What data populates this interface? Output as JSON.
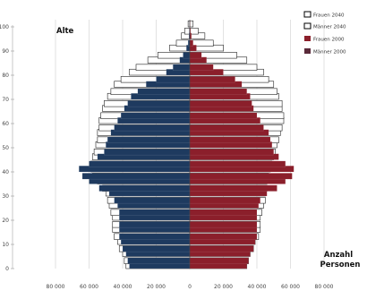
{
  "chart_data": {
    "type": "bar",
    "orientation": "horizontal",
    "subtype": "population-pyramid",
    "ylabel": "Alte",
    "xlabel_line1": "Anzahl",
    "xlabel_line2": "Personen",
    "x_ticks": [
      "80 000",
      "60 000",
      "40 000",
      "20 000",
      "0",
      "20 000",
      "40 000",
      "60 000",
      "80 000"
    ],
    "x_tick_values": [
      -80000,
      -60000,
      -40000,
      -20000,
      0,
      20000,
      40000,
      60000,
      80000
    ],
    "y_ticks": [
      "0",
      "10",
      "20",
      "30",
      "40",
      "50",
      "60",
      "70",
      "80",
      "90",
      "100"
    ],
    "y_tick_values": [
      0,
      10,
      20,
      30,
      40,
      50,
      60,
      70,
      80,
      90,
      100
    ],
    "xlim": [
      -80000,
      80000
    ],
    "ylim": [
      0,
      100
    ],
    "grid": "vertical",
    "legend_position": "top-right",
    "ages": [
      0,
      2,
      5,
      7,
      10,
      12,
      15,
      17,
      20,
      22,
      25,
      27,
      30,
      32,
      35,
      37,
      40,
      42,
      45,
      47,
      50,
      52,
      55,
      57,
      60,
      62,
      65,
      67,
      70,
      72,
      75,
      77,
      80,
      82,
      85,
      87,
      90,
      92,
      95,
      97,
      100
    ],
    "series": [
      {
        "name": "Frauen 2040",
        "color": "#ffffff",
        "side": "right",
        "values": [
          34000,
          35000,
          36000,
          38000,
          39000,
          41000,
          42000,
          42000,
          42000,
          43000,
          44000,
          45000,
          45000,
          46000,
          46000,
          47000,
          48000,
          49000,
          50000,
          51000,
          52000,
          53000,
          54000,
          55000,
          56000,
          56000,
          55000,
          55000,
          53000,
          52000,
          50000,
          47000,
          44000,
          40000,
          34000,
          28000,
          20000,
          14000,
          9000,
          5000,
          2000
        ]
      },
      {
        "name": "Männer 2040",
        "color": "#ffffff",
        "side": "left",
        "values": [
          38000,
          39000,
          40000,
          42000,
          43000,
          45000,
          46000,
          46000,
          46000,
          47000,
          48000,
          49000,
          50000,
          52000,
          55000,
          58000,
          59000,
          59000,
          58000,
          57000,
          56000,
          55000,
          55000,
          54000,
          54000,
          53000,
          52000,
          51000,
          49000,
          47000,
          45000,
          41000,
          36000,
          32000,
          25000,
          19000,
          12000,
          8000,
          5000,
          3000,
          1000
        ]
      },
      {
        "name": "Frauen 2000",
        "color": "#8b1f2b",
        "side": "right",
        "values": [
          34000,
          35000,
          36000,
          38000,
          39000,
          40000,
          40000,
          40000,
          40000,
          40000,
          41000,
          42000,
          46000,
          52000,
          57000,
          61000,
          62000,
          57000,
          53000,
          50000,
          49000,
          48000,
          47000,
          44000,
          42000,
          40000,
          38000,
          37000,
          36000,
          34000,
          31000,
          27000,
          20000,
          14000,
          10000,
          7000,
          4000,
          2000,
          1000,
          500,
          200
        ]
      },
      {
        "name": "Männer 2000",
        "color": "#1e3a5f",
        "side": "left",
        "values": [
          36000,
          37000,
          38000,
          40000,
          41000,
          42000,
          42000,
          42000,
          42000,
          42000,
          43000,
          45000,
          48000,
          54000,
          60000,
          64000,
          66000,
          60000,
          55000,
          51000,
          50000,
          49000,
          47000,
          45000,
          43000,
          41000,
          39000,
          37000,
          35000,
          31000,
          26000,
          20000,
          14000,
          10000,
          6000,
          4000,
          2000,
          1000,
          500,
          300,
          100
        ]
      }
    ]
  }
}
